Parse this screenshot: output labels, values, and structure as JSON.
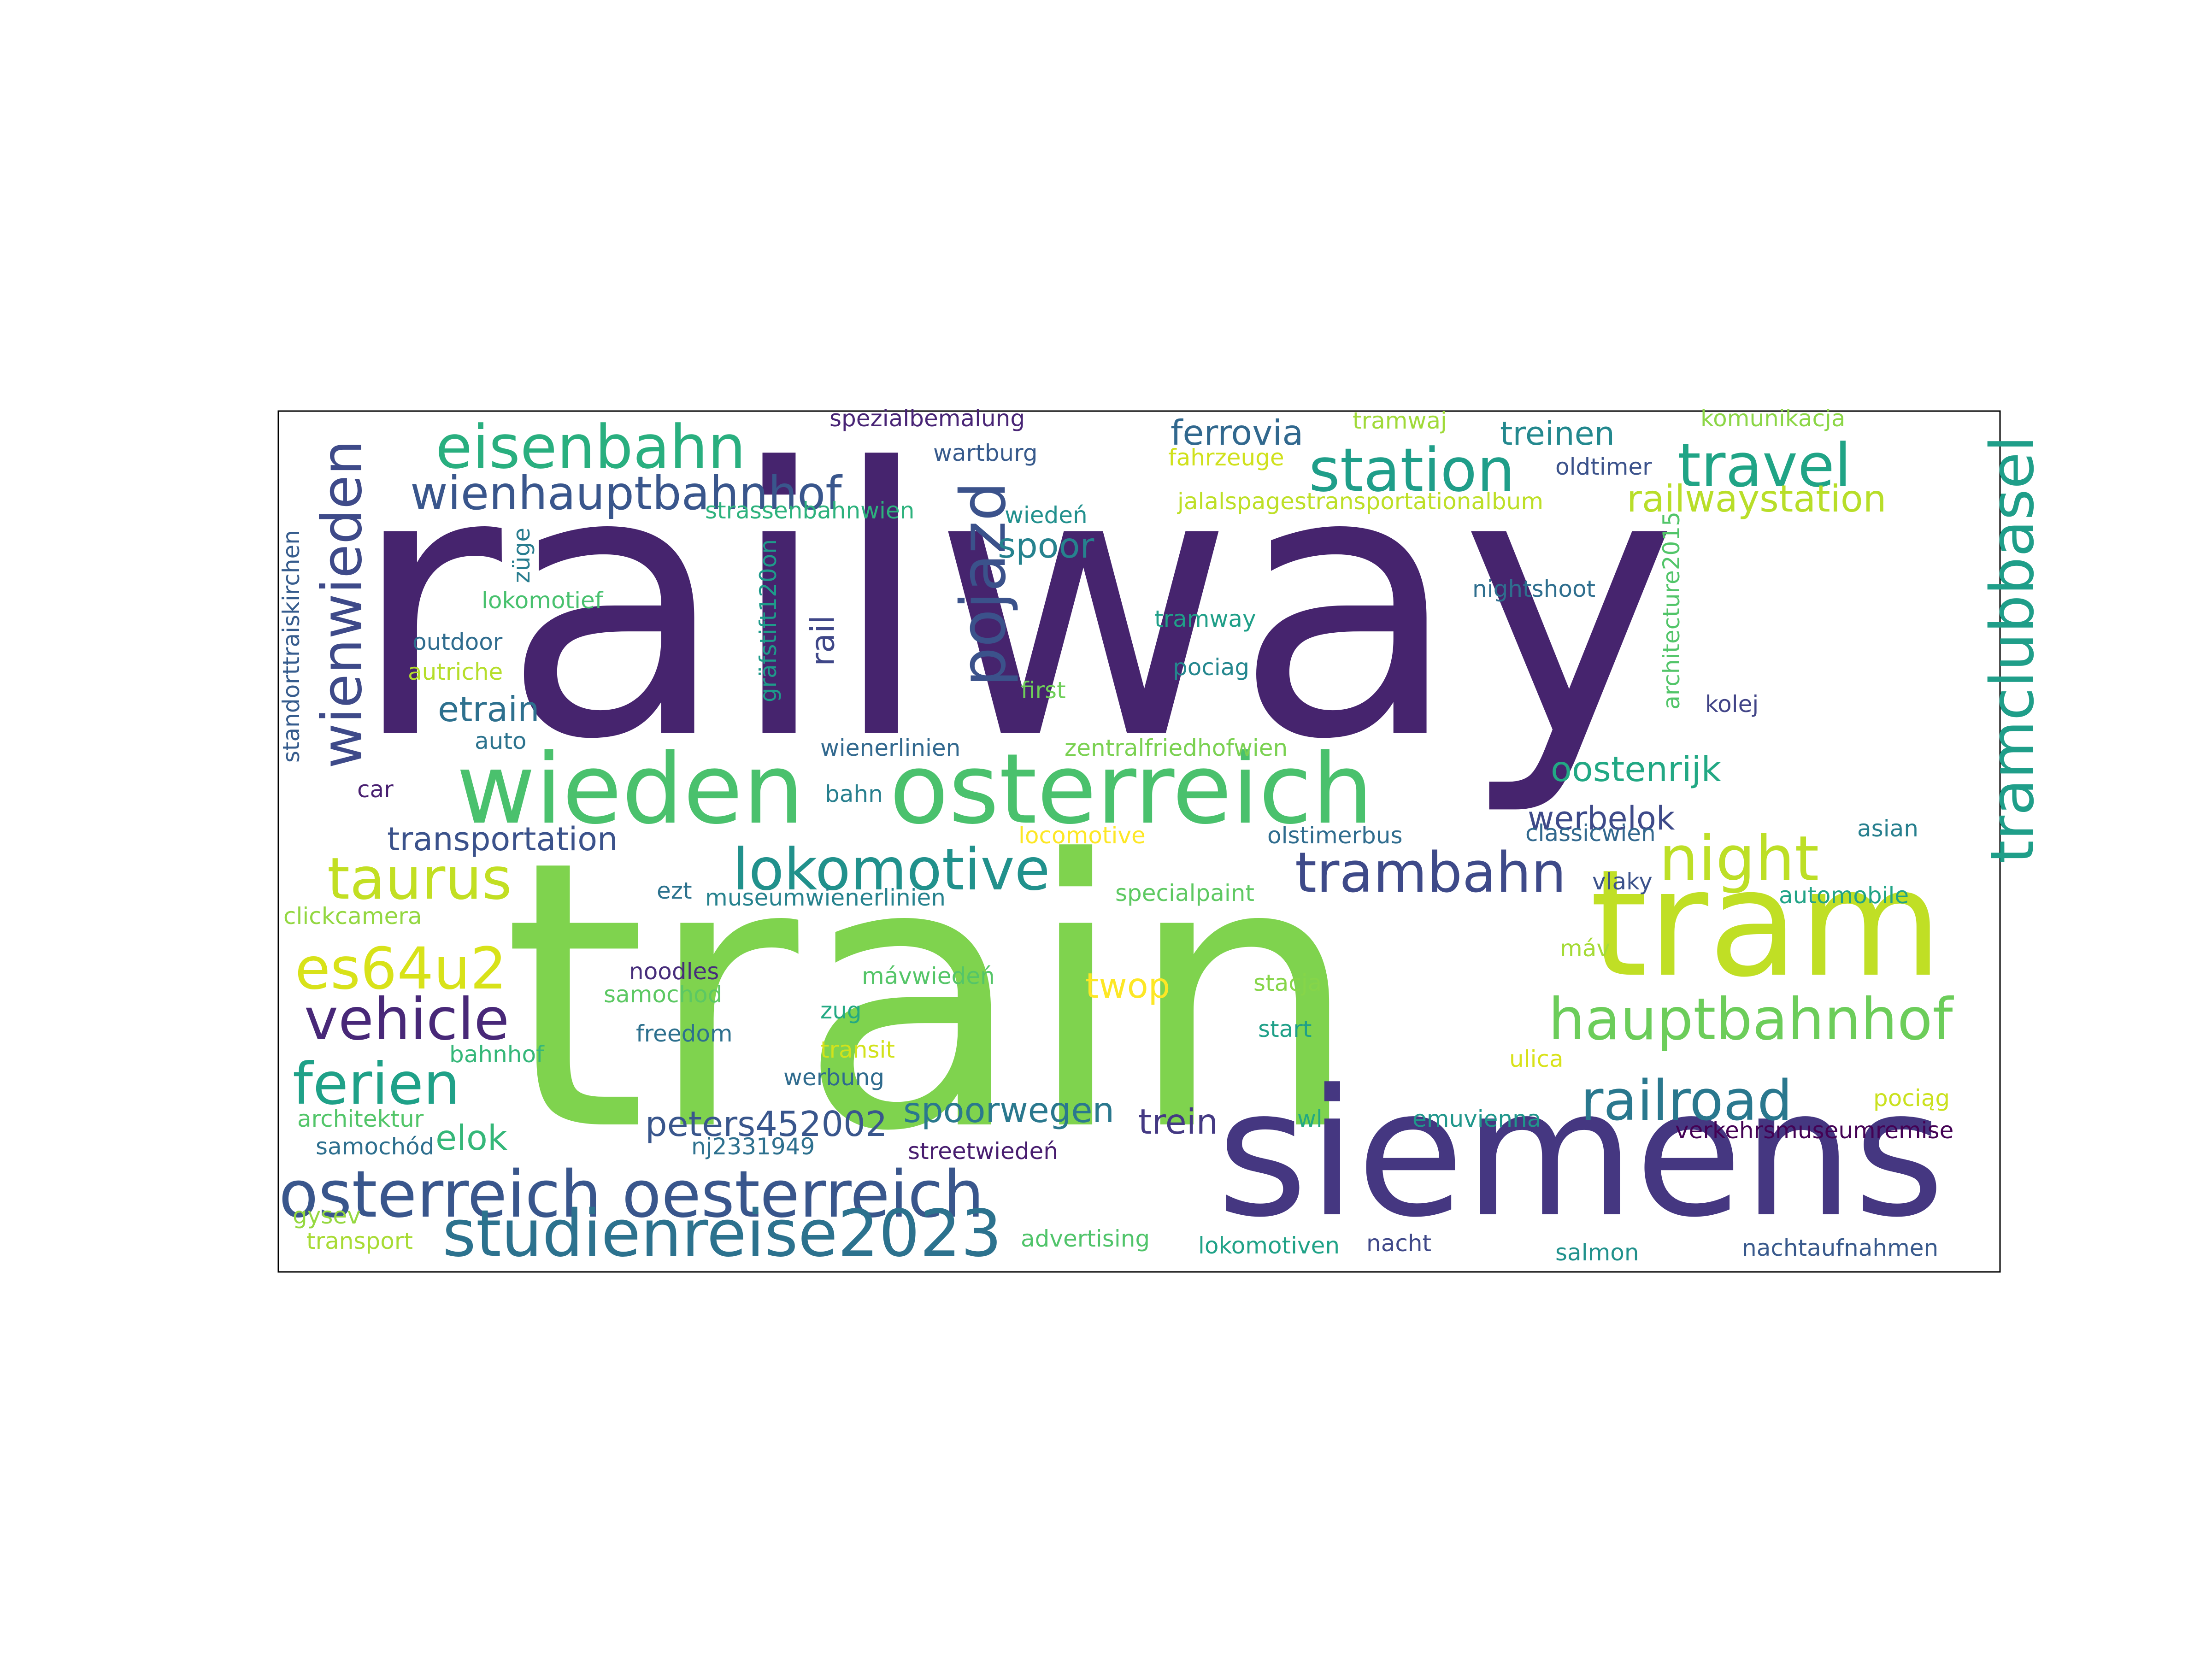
{
  "words": [
    {
      "text": "railway",
      "color": "#46246e"
    },
    {
      "text": "train",
      "color": "#7fd34e"
    },
    {
      "text": "siemens",
      "color": "#453781"
    },
    {
      "text": "tram",
      "color": "#c0df25"
    },
    {
      "text": "wieden",
      "color": "#4ac16d"
    },
    {
      "text": "osterreich",
      "color": "#4ac16d"
    },
    {
      "text": "osterreich oesterreich",
      "color": "#39568c"
    },
    {
      "text": "studienreise2023",
      "color": "#2c728e"
    },
    {
      "text": "eisenbahn",
      "color": "#29af7f"
    },
    {
      "text": "wienhauptbahnhof",
      "color": "#39568c"
    },
    {
      "text": "station",
      "color": "#1f9e89"
    },
    {
      "text": "travel",
      "color": "#20a486"
    },
    {
      "text": "railwaystation",
      "color": "#b8de29"
    },
    {
      "text": "tramclubbasel",
      "color": "#1f9e89"
    },
    {
      "text": "wienwieden",
      "color": "#3e4a89"
    },
    {
      "text": "pojazd",
      "color": "#3b528b"
    },
    {
      "text": "lokomotive",
      "color": "#21918c"
    },
    {
      "text": "trambahn",
      "color": "#3e4a89"
    },
    {
      "text": "night",
      "color": "#bddf26"
    },
    {
      "text": "taurus",
      "color": "#c2df23"
    },
    {
      "text": "es64u2",
      "color": "#d8e219"
    },
    {
      "text": "vehicle",
      "color": "#482878"
    },
    {
      "text": "hauptbahnhof",
      "color": "#6ccd5a"
    },
    {
      "text": "ferien",
      "color": "#1fa188"
    },
    {
      "text": "railroad",
      "color": "#2a788e"
    },
    {
      "text": "transportation",
      "color": "#3b528b"
    },
    {
      "text": "oostenrijk",
      "color": "#22a884"
    },
    {
      "text": "werbelok",
      "color": "#3e4a89"
    },
    {
      "text": "etrain",
      "color": "#2d708e"
    },
    {
      "text": "spoorwegen",
      "color": "#2a788e"
    },
    {
      "text": "peters452002",
      "color": "#39568c"
    },
    {
      "text": "trein",
      "color": "#443983"
    },
    {
      "text": "elok",
      "color": "#35b779"
    },
    {
      "text": "twop",
      "color": "#fde725"
    },
    {
      "text": "spoor",
      "color": "#26828e"
    },
    {
      "text": "rail",
      "color": "#3f4788"
    },
    {
      "text": "ferrovia",
      "color": "#31688e"
    },
    {
      "text": "treinen",
      "color": "#23888e"
    },
    {
      "text": "spezialbemalung",
      "color": "#482475"
    },
    {
      "text": "wartburg",
      "color": "#375a8c"
    },
    {
      "text": "tramwaj",
      "color": "#a0da39"
    },
    {
      "text": "komunikacja",
      "color": "#8bd646"
    },
    {
      "text": "fahrzeuge",
      "color": "#d0e11c"
    },
    {
      "text": "oldtimer",
      "color": "#3b528b"
    },
    {
      "text": "jalalspagestransportationalbum",
      "color": "#bddf26"
    },
    {
      "text": "strassenbahnwien",
      "color": "#2db27d"
    },
    {
      "text": "wiedeń",
      "color": "#21908d"
    },
    {
      "text": "züge",
      "color": "#287c8e"
    },
    {
      "text": "lokomotief",
      "color": "#48c16e"
    },
    {
      "text": "outdoor",
      "color": "#2f6c8e"
    },
    {
      "text": "autriche",
      "color": "#b5de2b"
    },
    {
      "text": "auto",
      "color": "#2c738e"
    },
    {
      "text": "car",
      "color": "#481f70"
    },
    {
      "text": "standorttraiskirchen",
      "color": "#365c8d"
    },
    {
      "text": "gräfstift120on",
      "color": "#1e9b8a"
    },
    {
      "text": "first",
      "color": "#6ece58"
    },
    {
      "text": "wienerlinien",
      "color": "#31688e"
    },
    {
      "text": "zentralfriedhofwien",
      "color": "#7ad151"
    },
    {
      "text": "bahn",
      "color": "#277f8e"
    },
    {
      "text": "tramway",
      "color": "#1f9f88"
    },
    {
      "text": "pociag",
      "color": "#24878e"
    },
    {
      "text": "nightshoot",
      "color": "#2e6e8e"
    },
    {
      "text": "architecture2015",
      "color": "#52c569"
    },
    {
      "text": "kolej",
      "color": "#414487"
    },
    {
      "text": "locomotive",
      "color": "#fde725"
    },
    {
      "text": "olstimerbus",
      "color": "#2f6c8e"
    },
    {
      "text": "classicwien",
      "color": "#31688e"
    },
    {
      "text": "asian",
      "color": "#277f8e"
    },
    {
      "text": "vlaky",
      "color": "#3b528b"
    },
    {
      "text": "ezt",
      "color": "#2c728e"
    },
    {
      "text": "museumwienerlinien",
      "color": "#26828e"
    },
    {
      "text": "specialpaint",
      "color": "#5ec962"
    },
    {
      "text": "automobile",
      "color": "#20a386"
    },
    {
      "text": "clickcamera",
      "color": "#93d741"
    },
    {
      "text": "noodles",
      "color": "#472d7b"
    },
    {
      "text": "samochod",
      "color": "#5cc863"
    },
    {
      "text": "mávwiedeń",
      "color": "#54c568"
    },
    {
      "text": "máv",
      "color": "#a5db36"
    },
    {
      "text": "stacja",
      "color": "#86d549"
    },
    {
      "text": "start",
      "color": "#1fa088"
    },
    {
      "text": "zug",
      "color": "#23a983"
    },
    {
      "text": "freedom",
      "color": "#2d708e"
    },
    {
      "text": "transit",
      "color": "#d2e21b"
    },
    {
      "text": "bahnhof",
      "color": "#35b779"
    },
    {
      "text": "werbung",
      "color": "#2f6b8e"
    },
    {
      "text": "ulica",
      "color": "#d8e219"
    },
    {
      "text": "architektur",
      "color": "#52c569"
    },
    {
      "text": "wl",
      "color": "#23a983"
    },
    {
      "text": "emuvienna",
      "color": "#1f968b"
    },
    {
      "text": "pociąg",
      "color": "#cae11f"
    },
    {
      "text": "samochód",
      "color": "#2e6f8e"
    },
    {
      "text": "nj2331949",
      "color": "#2d708e"
    },
    {
      "text": "streetwiedeń",
      "color": "#481d6f"
    },
    {
      "text": "verkehrsmuseumremise",
      "color": "#440154"
    },
    {
      "text": "gysev",
      "color": "#95d840"
    },
    {
      "text": "transport",
      "color": "#a8db34"
    },
    {
      "text": "advertising",
      "color": "#50c46a"
    },
    {
      "text": "lokomotiven",
      "color": "#1fa287"
    },
    {
      "text": "nacht",
      "color": "#3f4889"
    },
    {
      "text": "salmon",
      "color": "#21918c"
    },
    {
      "text": "nachtaufnahmen",
      "color": "#38598c"
    }
  ]
}
